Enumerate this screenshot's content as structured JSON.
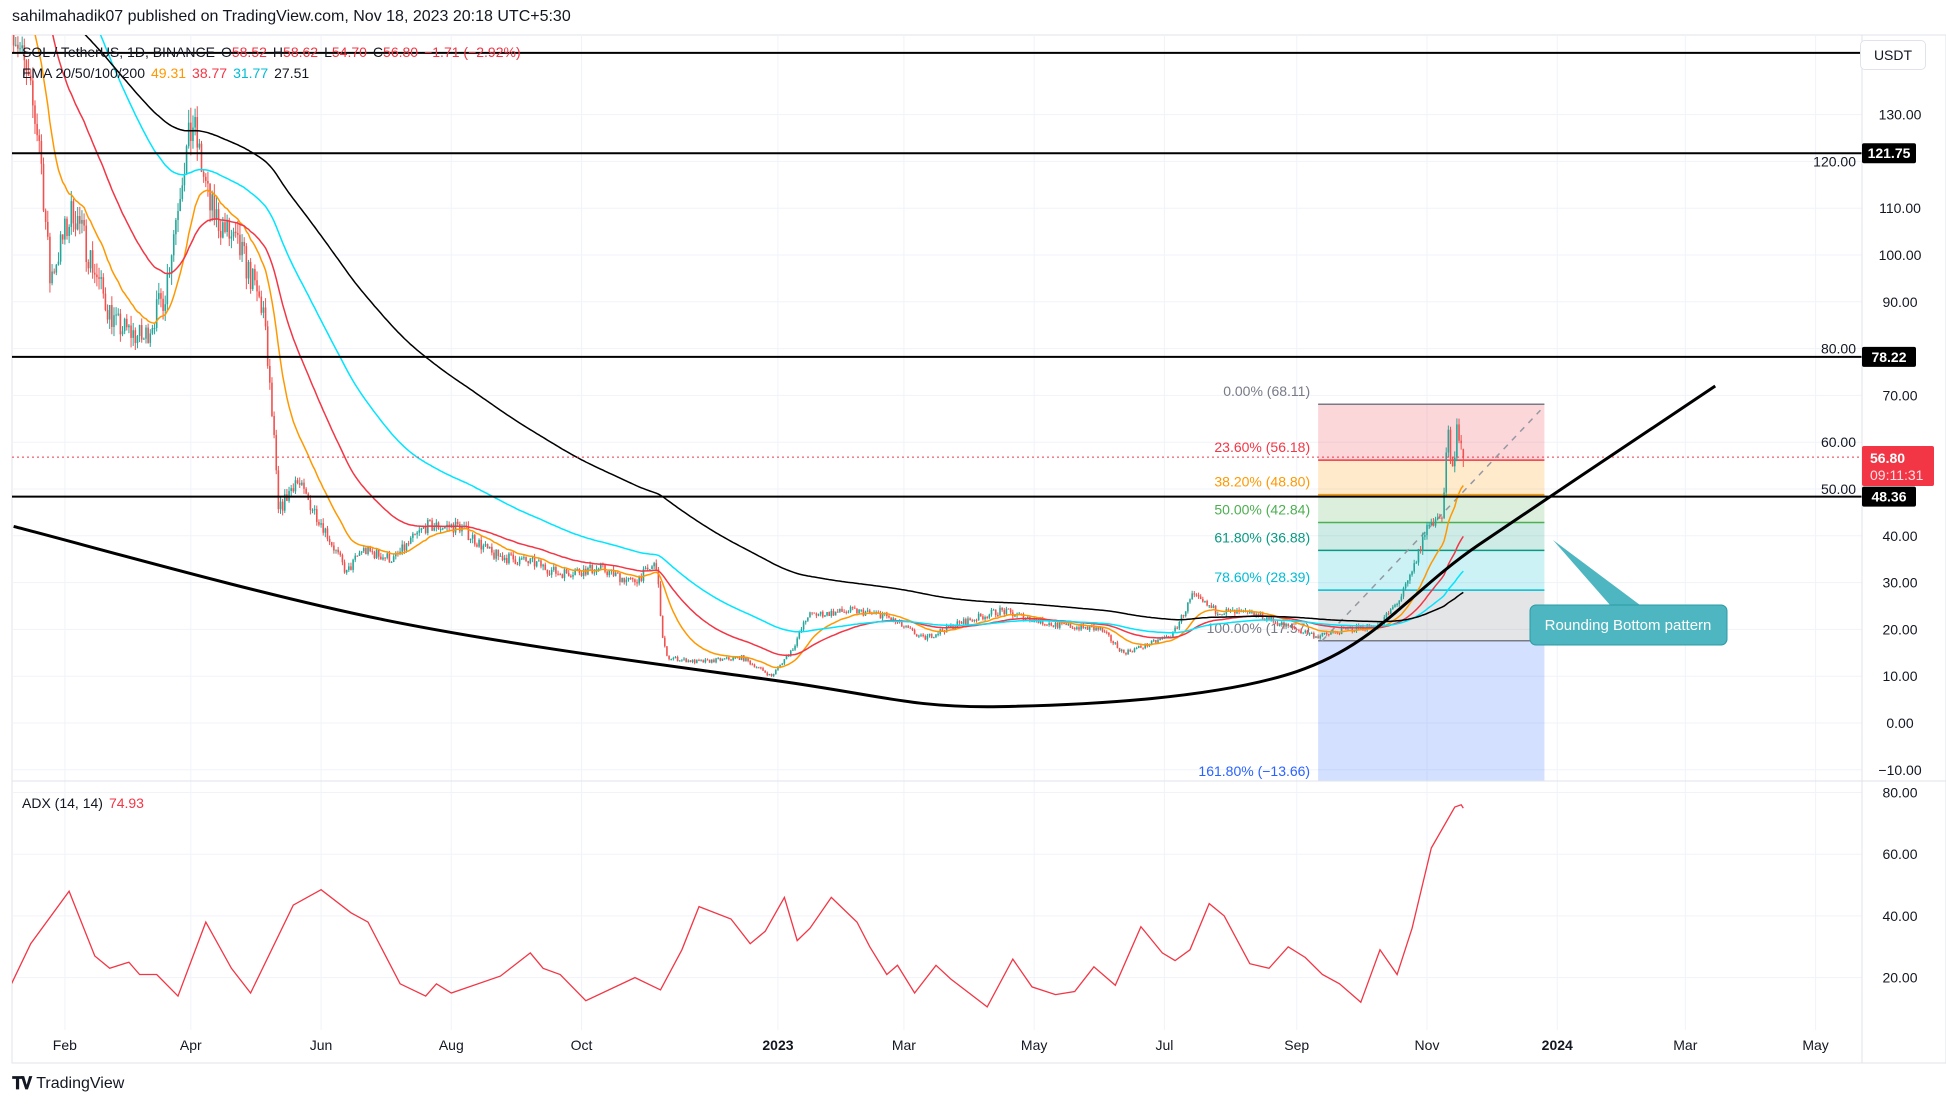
{
  "header": {
    "published": "sahilmahadik07 published on TradingView.com, Nov 18, 2023 20:18 UTC+5:30"
  },
  "legend": {
    "symbol": "SOL / TetherUS, 1D, BINANCE",
    "open_label": "O",
    "open": "58.52",
    "high_label": "H",
    "high": "58.62",
    "low_label": "L",
    "low": "54.70",
    "close_label": "C",
    "close": "56.80",
    "change": "−1.71 (−2.92%)",
    "ema_label": "EMA 20/50/100/200",
    "ema20": "49.31",
    "ema50": "38.77",
    "ema100": "31.77",
    "ema200": "27.51",
    "adx_label": "ADX (14, 14)",
    "adx_value": "74.93"
  },
  "price_axis": {
    "currency": "USDT",
    "current_price": "56.80",
    "countdown": "09:11:31"
  },
  "footer": {
    "brand": "TradingView",
    "logo": "TV"
  },
  "colors": {
    "up": "#26a69a",
    "down": "#ef5350",
    "ema20": "#ff9800",
    "ema50": "#f23645",
    "ema100": "#00e5ff",
    "ema200": "#000000",
    "adx": "#f23645",
    "callout": "#4db6c0"
  },
  "chart_data": {
    "type": "candlestick",
    "title": "SOL / TetherUS, 1D, BINANCE",
    "ylim": [
      -13.66,
      150
    ],
    "y_ticks": [
      "130.00",
      "120.00",
      "110.00",
      "100.00",
      "90.00",
      "80.00",
      "70.00",
      "60.00",
      "50.00",
      "40.00",
      "30.00",
      "20.00",
      "10.00",
      "0.00",
      "−10.00"
    ],
    "y_tick_values": [
      130,
      120,
      110,
      100,
      90,
      80,
      70,
      60,
      50,
      40,
      30,
      20,
      10,
      0,
      -10
    ],
    "x_ticks": [
      {
        "label": "Feb",
        "date": "2022-02-01"
      },
      {
        "label": "Apr",
        "date": "2022-04-01"
      },
      {
        "label": "Jun",
        "date": "2022-06-01"
      },
      {
        "label": "Aug",
        "date": "2022-08-01"
      },
      {
        "label": "Oct",
        "date": "2022-10-01"
      },
      {
        "label": "2023",
        "date": "2023-01-01",
        "bold": true
      },
      {
        "label": "Mar",
        "date": "2023-03-01"
      },
      {
        "label": "May",
        "date": "2023-05-01"
      },
      {
        "label": "Jul",
        "date": "2023-07-01"
      },
      {
        "label": "Sep",
        "date": "2023-09-01"
      },
      {
        "label": "Nov",
        "date": "2023-11-01"
      },
      {
        "label": "2024",
        "date": "2024-01-01",
        "bold": true
      },
      {
        "label": "Mar",
        "date": "2024-03-01"
      },
      {
        "label": "May",
        "date": "2024-05-01"
      }
    ],
    "price_keypoints": [
      [
        "2022-01-08",
        150
      ],
      [
        "2022-01-20",
        125
      ],
      [
        "2022-01-25",
        95
      ],
      [
        "2022-02-05",
        110
      ],
      [
        "2022-02-20",
        90
      ],
      [
        "2022-02-25",
        85
      ],
      [
        "2022-03-10",
        82
      ],
      [
        "2022-03-20",
        92
      ],
      [
        "2022-03-28",
        118
      ],
      [
        "2022-04-02",
        128
      ],
      [
        "2022-04-10",
        110
      ],
      [
        "2022-04-25",
        100
      ],
      [
        "2022-05-05",
        88
      ],
      [
        "2022-05-10",
        60
      ],
      [
        "2022-05-12",
        45
      ],
      [
        "2022-05-20",
        52
      ],
      [
        "2022-06-01",
        43
      ],
      [
        "2022-06-13",
        32
      ],
      [
        "2022-06-20",
        37
      ],
      [
        "2022-07-05",
        35
      ],
      [
        "2022-07-20",
        42
      ],
      [
        "2022-08-05",
        42
      ],
      [
        "2022-08-20",
        36
      ],
      [
        "2022-09-10",
        34
      ],
      [
        "2022-09-20",
        32
      ],
      [
        "2022-10-10",
        33
      ],
      [
        "2022-10-25",
        30
      ],
      [
        "2022-11-05",
        34
      ],
      [
        "2022-11-08",
        18
      ],
      [
        "2022-11-10",
        14
      ],
      [
        "2022-11-25",
        13
      ],
      [
        "2022-12-15",
        14
      ],
      [
        "2022-12-29",
        10
      ],
      [
        "2023-01-08",
        16
      ],
      [
        "2023-01-15",
        23
      ],
      [
        "2023-02-05",
        24
      ],
      [
        "2023-02-20",
        23
      ],
      [
        "2023-03-10",
        18
      ],
      [
        "2023-03-25",
        21
      ],
      [
        "2023-04-15",
        24
      ],
      [
        "2023-05-10",
        21
      ],
      [
        "2023-06-01",
        20
      ],
      [
        "2023-06-12",
        15
      ],
      [
        "2023-06-25",
        17
      ],
      [
        "2023-07-05",
        19
      ],
      [
        "2023-07-14",
        27
      ],
      [
        "2023-07-25",
        24
      ],
      [
        "2023-08-15",
        23
      ],
      [
        "2023-08-25",
        21
      ],
      [
        "2023-09-11",
        18.5
      ],
      [
        "2023-09-25",
        20
      ],
      [
        "2023-10-10",
        21
      ],
      [
        "2023-10-20",
        27
      ],
      [
        "2023-10-25",
        32
      ],
      [
        "2023-11-01",
        42
      ],
      [
        "2023-11-06",
        44
      ],
      [
        "2023-11-08",
        43
      ],
      [
        "2023-11-10",
        56
      ],
      [
        "2023-11-11",
        62
      ],
      [
        "2023-11-12",
        58
      ],
      [
        "2023-11-14",
        55
      ],
      [
        "2023-11-15",
        62
      ],
      [
        "2023-11-16",
        60
      ],
      [
        "2023-11-17",
        58.5
      ],
      [
        "2023-11-18",
        56.8
      ]
    ],
    "last_candle": {
      "open": 58.52,
      "high": 58.62,
      "low": 54.7,
      "close": 56.8
    },
    "ema_last": {
      "ema20": 49.31,
      "ema50": 38.77,
      "ema100": 31.77,
      "ema200": 27.51
    },
    "horizontal_levels": [
      {
        "price": 143.2,
        "label": ""
      },
      {
        "price": 121.75,
        "label": "121.75"
      },
      {
        "price": 78.22,
        "label": "78.22"
      },
      {
        "price": 48.36,
        "label": "48.36"
      }
    ],
    "fibonacci": {
      "start_date": "2023-09-11",
      "end_date": "2023-12-26",
      "levels": [
        {
          "ratio": 0,
          "price": 68.11,
          "label": "0.00% (68.11)",
          "color": "#787b86",
          "fill": "rgba(242,54,69,0.2)"
        },
        {
          "ratio": 0.236,
          "price": 56.18,
          "label": "23.60% (56.18)",
          "color": "#f23645",
          "fill": "rgba(255,152,0,0.2)"
        },
        {
          "ratio": 0.382,
          "price": 48.8,
          "label": "38.20% (48.80)",
          "color": "#ff9800",
          "fill": "rgba(76,175,80,0.2)"
        },
        {
          "ratio": 0.5,
          "price": 42.84,
          "label": "50.00% (42.84)",
          "color": "#4caf50",
          "fill": "rgba(8,153,129,0.2)"
        },
        {
          "ratio": 0.618,
          "price": 36.88,
          "label": "61.80% (36.88)",
          "color": "#089981",
          "fill": "rgba(0,188,212,0.2)"
        },
        {
          "ratio": 0.786,
          "price": 28.39,
          "label": "78.60% (28.39)",
          "color": "#00bcd4",
          "fill": "rgba(120,123,134,0.2)"
        },
        {
          "ratio": 1,
          "price": 17.57,
          "label": "100.00% (17.57)",
          "color": "#787b86",
          "fill": "rgba(41,98,255,0.2)"
        },
        {
          "ratio": 1.618,
          "price": -13.66,
          "label": "161.80% (−13.66)",
          "color": "#2962ff",
          "fill": ""
        }
      ]
    },
    "annotation": {
      "text": "Rounding Bottom pattern"
    },
    "rounding_bottom_curve": [
      [
        "2022-01-08",
        42
      ],
      [
        "2022-07-01",
        22
      ],
      [
        "2023-01-01",
        9
      ],
      [
        "2023-04-15",
        3.5
      ],
      [
        "2023-09-01",
        11
      ],
      [
        "2023-11-25",
        38
      ],
      [
        "2024-03-15",
        72
      ]
    ],
    "adx": {
      "name": "ADX (14, 14)",
      "ylim": [
        0,
        85
      ],
      "y_ticks": [
        "80.00",
        "60.00",
        "40.00",
        "20.00"
      ],
      "y_tick_values": [
        80,
        60,
        40,
        20
      ],
      "points": [
        [
          "2022-01-07",
          18
        ],
        [
          "2022-01-16",
          31
        ],
        [
          "2022-02-03",
          48
        ],
        [
          "2022-02-15",
          27
        ],
        [
          "2022-02-22",
          23
        ],
        [
          "2022-03-03",
          25
        ],
        [
          "2022-03-08",
          21
        ],
        [
          "2022-03-16",
          21
        ],
        [
          "2022-03-26",
          14
        ],
        [
          "2022-04-08",
          38
        ],
        [
          "2022-04-20",
          23
        ],
        [
          "2022-04-29",
          15
        ],
        [
          "2022-05-19",
          43.5
        ],
        [
          "2022-06-01",
          48.5
        ],
        [
          "2022-06-15",
          41
        ],
        [
          "2022-06-23",
          38
        ],
        [
          "2022-07-08",
          18
        ],
        [
          "2022-07-20",
          14
        ],
        [
          "2022-07-25",
          18
        ],
        [
          "2022-08-01",
          15
        ],
        [
          "2022-08-24",
          20.5
        ],
        [
          "2022-09-07",
          28
        ],
        [
          "2022-09-13",
          23
        ],
        [
          "2022-09-21",
          21
        ],
        [
          "2022-10-03",
          12.5
        ],
        [
          "2022-10-26",
          20
        ],
        [
          "2022-11-07",
          16
        ],
        [
          "2022-11-17",
          29
        ],
        [
          "2022-11-25",
          43
        ],
        [
          "2022-12-10",
          39
        ],
        [
          "2022-12-19",
          31
        ],
        [
          "2022-12-26",
          35
        ],
        [
          "2023-01-04",
          46
        ],
        [
          "2023-01-10",
          32
        ],
        [
          "2023-01-16",
          36
        ],
        [
          "2023-01-26",
          46
        ],
        [
          "2023-02-07",
          38
        ],
        [
          "2023-02-13",
          30
        ],
        [
          "2023-02-21",
          21
        ],
        [
          "2023-02-26",
          24
        ],
        [
          "2023-03-06",
          15
        ],
        [
          "2023-03-16",
          24
        ],
        [
          "2023-03-23",
          19.5
        ],
        [
          "2023-04-09",
          10.5
        ],
        [
          "2023-04-21",
          26
        ],
        [
          "2023-04-30",
          17
        ],
        [
          "2023-05-11",
          14.5
        ],
        [
          "2023-05-20",
          15.5
        ],
        [
          "2023-05-29",
          23.5
        ],
        [
          "2023-06-08",
          17.5
        ],
        [
          "2023-06-20",
          36.5
        ],
        [
          "2023-06-30",
          28
        ],
        [
          "2023-07-06",
          25.5
        ],
        [
          "2023-07-13",
          29
        ],
        [
          "2023-07-22",
          44
        ],
        [
          "2023-07-29",
          40
        ],
        [
          "2023-08-10",
          24.5
        ],
        [
          "2023-08-19",
          23
        ],
        [
          "2023-08-28",
          30
        ],
        [
          "2023-09-05",
          26.5
        ],
        [
          "2023-09-13",
          21
        ],
        [
          "2023-09-21",
          18
        ],
        [
          "2023-10-01",
          12
        ],
        [
          "2023-10-10",
          29
        ],
        [
          "2023-10-18",
          21
        ],
        [
          "2023-10-25",
          36
        ],
        [
          "2023-11-03",
          62
        ],
        [
          "2023-11-14",
          75.3
        ],
        [
          "2023-11-17",
          76
        ],
        [
          "2023-11-18",
          74.93
        ]
      ]
    }
  }
}
